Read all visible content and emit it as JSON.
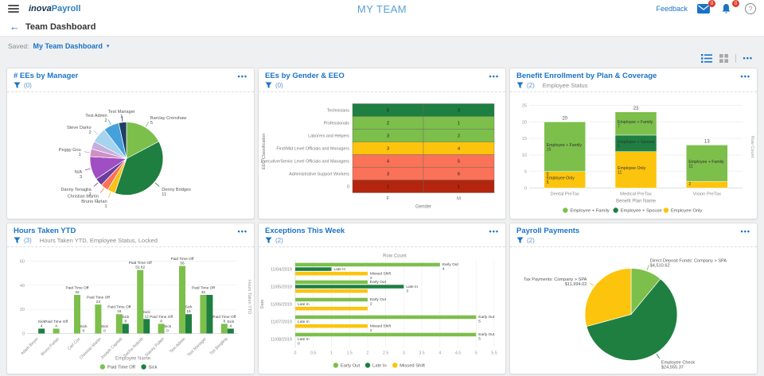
{
  "header": {
    "logo_primary": "inova",
    "logo_secondary": "Payroll",
    "title": "MY TEAM",
    "feedback_label": "Feedback",
    "mail_badge": "0",
    "bell_badge": "0",
    "help_label": "?"
  },
  "nav": {
    "back_arrow": "←",
    "title": "Team Dashboard"
  },
  "saved_bar": {
    "label": "Saved:",
    "value": "My Team Dashboard",
    "caret": "▾"
  },
  "toolbar": {
    "more_label": "•••"
  },
  "colors": {
    "accent_blue": "#1a73c7",
    "light_green": "#7cbf4b",
    "dark_green": "#1e7f41",
    "gold": "#fcc40c",
    "coral": "#fa7257",
    "dark_red": "#b3250e",
    "badge_red": "#e23b2e"
  },
  "panels": [
    {
      "title": "# EEs by Manager",
      "filter_count": "(0)",
      "filter_text": "",
      "chart_data": {
        "type": "pie",
        "slices": [
          {
            "label": "Barclay Crenshaw",
            "value": 5,
            "color": "#7cbf4b"
          },
          {
            "label": "Denny Bridges",
            "value": 11,
            "color": "#1e7f41"
          },
          {
            "label": "Bruno Furlan",
            "value": 1,
            "color": "#fbc116"
          },
          {
            "label": "Christian Martin",
            "value": 1,
            "color": "#fa7257"
          },
          {
            "label": "Danny Tenaglia",
            "value": 1,
            "color": "#6a3d9e"
          },
          {
            "label": "N/A",
            "value": 3,
            "color": "#a04ec4"
          },
          {
            "label": "Peggy Gou",
            "value": 1,
            "color": "#cf8fc6"
          },
          {
            "label": "",
            "value": 1,
            "color": "#c5aede"
          },
          {
            "label": "Steve Darko",
            "value": 2,
            "color": "#a6d3ee"
          },
          {
            "label": "Test Admin",
            "value": 2,
            "color": "#45a1dc"
          },
          {
            "label": "Test Manager",
            "value": 1,
            "color": "#203e63"
          }
        ]
      }
    },
    {
      "title": "EEs by Gender & EEO",
      "filter_count": "(0)",
      "filter_text": "",
      "chart_data": {
        "type": "heatmap",
        "x": [
          "F",
          "M"
        ],
        "xlabel": "Gender",
        "ylabel": "EEO Classification",
        "rows": [
          {
            "label": "Technicians",
            "values": [
              5,
              3
            ],
            "color": "#1e7f41"
          },
          {
            "label": "Professionals",
            "values": [
              2,
              1
            ],
            "color": "#7cbf4b"
          },
          {
            "label": "Laborers and Helpers",
            "values": [
              3,
              2
            ],
            "color": "#7cbf4b"
          },
          {
            "label": "First/Mid Level Officials and Managers",
            "values": [
              3,
              4
            ],
            "color": "#fcc40c"
          },
          {
            "label": "Executive/Senior Level Officials and Managers",
            "values": [
              4,
              5
            ],
            "color": "#fa7257"
          },
          {
            "label": "Administrative Support Workers",
            "values": [
              3,
              6
            ],
            "color": "#fa7257"
          },
          {
            "label": "0",
            "values": [
              1,
              1
            ],
            "color": "#b3250e"
          }
        ]
      }
    },
    {
      "title": "Benefit Enrollment by Plan & Coverage",
      "filter_count": "(2)",
      "filter_text": "Employee Status",
      "chart_data": {
        "type": "stacked-bar",
        "categories": [
          "Dental PreTax",
          "Medical PreTax",
          "Vision PreTax"
        ],
        "xlabel": "Benefit Plan Name",
        "ylabel_right": "Row Count",
        "yticks": [
          0,
          5,
          10,
          15,
          20,
          25
        ],
        "totals": [
          20,
          23,
          13
        ],
        "series": [
          {
            "name": "Employee + Family",
            "color": "#7cbf4b",
            "values": [
              15,
              7,
              11
            ],
            "label_flags": [
              true,
              true,
              true
            ]
          },
          {
            "name": "Employee + Spouse",
            "color": "#1e7f41",
            "values": [
              0,
              5,
              0
            ],
            "label_flags": [
              true,
              true,
              false
            ]
          },
          {
            "name": "Employee Only",
            "color": "#fcc40c",
            "values": [
              5,
              11,
              2
            ],
            "label_flags": [
              true,
              true,
              true
            ]
          }
        ]
      }
    },
    {
      "title": "Hours Taken YTD",
      "filter_count": "(3)",
      "filter_text": "Hours Taken YTD, Employee Status, Locked",
      "chart_data": {
        "type": "grouped-bar",
        "categories": [
          "Adam Beyer",
          "Bruno Furlan",
          "Carl Cox",
          "Christian Martin",
          "Joseph Capriati",
          "Sacha Robotti",
          "Stacey Pullen",
          "Test Admin",
          "Test Manager",
          "Tim Bergling"
        ],
        "xlabel": "Employee Name",
        "ylabel_right": "Hours Taken YTD",
        "yticks": [
          0,
          20,
          40,
          60
        ],
        "series": [
          {
            "name": "Paid Time Off",
            "color": "#7cbf4b",
            "values": [
              0,
              4,
              32,
              24,
              16,
              52.62,
              8,
              56,
              32,
              8
            ],
            "labels": [
              null,
              "4",
              "32",
              "24",
              "16",
              "52.62",
              "8",
              "56",
              "32",
              "8"
            ]
          },
          {
            "name": "Sick",
            "color": "#1e7f41",
            "values": [
              4,
              0,
              0,
              0,
              8,
              12,
              0,
              16,
              32,
              4
            ],
            "labels": [
              "4",
              null,
              "0",
              "0",
              "8",
              "12",
              "0",
              "16",
              null,
              "4"
            ]
          }
        ]
      }
    },
    {
      "title": "Exceptions This Week",
      "filter_count": "(2)",
      "filter_text": "",
      "chart_data": {
        "type": "h-bar",
        "categories": [
          "11/04/2019",
          "11/05/2019",
          "11/06/2019",
          "11/07/2019",
          "11/08/2019"
        ],
        "ylabel": "Date",
        "top_label": "Row Count",
        "xticks": [
          "0",
          "0.5",
          "1",
          "1.5",
          "2",
          "2.5",
          "3",
          "3.5",
          "4",
          "4.5",
          "5",
          "5.5"
        ],
        "xmax": 5.5,
        "series": [
          {
            "name": "Early Out",
            "color": "#7cbf4b",
            "values": [
              4,
              2,
              2,
              5,
              5
            ],
            "labels": [
              "4",
              "2",
              "2",
              "5",
              "5"
            ]
          },
          {
            "name": "Late In",
            "color": "#1e7f41",
            "values": [
              1,
              3,
              0,
              0,
              0
            ],
            "labels": [
              "1",
              "3",
              "0",
              "0",
              "0"
            ]
          },
          {
            "name": "Missed Shift",
            "color": "#fcc40c",
            "values": [
              2,
              2,
              2,
              2,
              0
            ],
            "labels": [
              "2",
              null,
              null,
              "2",
              null
            ]
          }
        ]
      }
    },
    {
      "title": "Payroll Payments",
      "filter_count": "(2)",
      "filter_text": "",
      "chart_data": {
        "type": "pie",
        "slices": [
          {
            "label": "Direct Deposit Funds: Company > SPA",
            "value": 4510.62,
            "value_label": "$4,510.62",
            "color": "#7cbf4b"
          },
          {
            "label": "Employee Check",
            "value": 24555.37,
            "value_label": "$24,555.37",
            "color": "#1e7f41"
          },
          {
            "label": "Tax Payments: Company > SPA",
            "value": 11994.02,
            "value_label": "$11,994.02",
            "color": "#fcc40c"
          }
        ]
      }
    }
  ]
}
